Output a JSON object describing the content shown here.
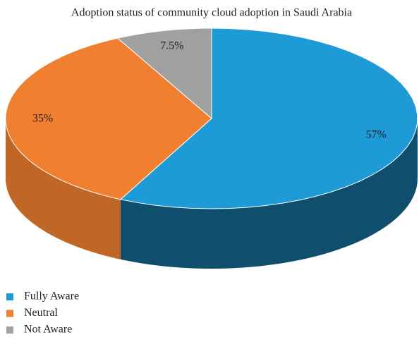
{
  "chart_data": {
    "type": "pie3d",
    "title": "Adoption status of community cloud adoption in Saudi Arabia",
    "categories": [
      "Fully Aware",
      "Neutral",
      "Not Aware"
    ],
    "values": [
      57,
      35,
      7.5
    ],
    "value_labels": [
      "57%",
      "35%",
      "7.5%"
    ],
    "colors": [
      "#1e9bd7",
      "#f07f2f",
      "#a0a0a0"
    ],
    "legend": "bottom-left"
  }
}
